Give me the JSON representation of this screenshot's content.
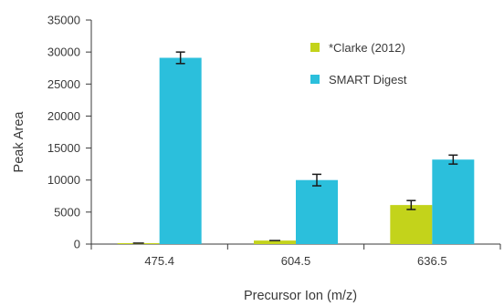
{
  "chart_data": {
    "type": "bar",
    "title": "",
    "xlabel": "Precursor Ion (m/z)",
    "ylabel": "Peak Area",
    "categories": [
      "475.4",
      "604.5",
      "636.5"
    ],
    "ylim": [
      0,
      35000
    ],
    "yticks": [
      0,
      5000,
      10000,
      15000,
      20000,
      25000,
      30000,
      35000
    ],
    "grid": false,
    "legend_position": "top-right",
    "series": [
      {
        "name": "*Clarke (2012)",
        "color": "#c3d31b",
        "values": [
          150,
          550,
          6100
        ],
        "errors": [
          0,
          0,
          700
        ]
      },
      {
        "name": "SMART Digest",
        "color": "#2bbfdc",
        "values": [
          29100,
          10000,
          13200
        ],
        "errors": [
          900,
          900,
          700
        ]
      }
    ]
  }
}
